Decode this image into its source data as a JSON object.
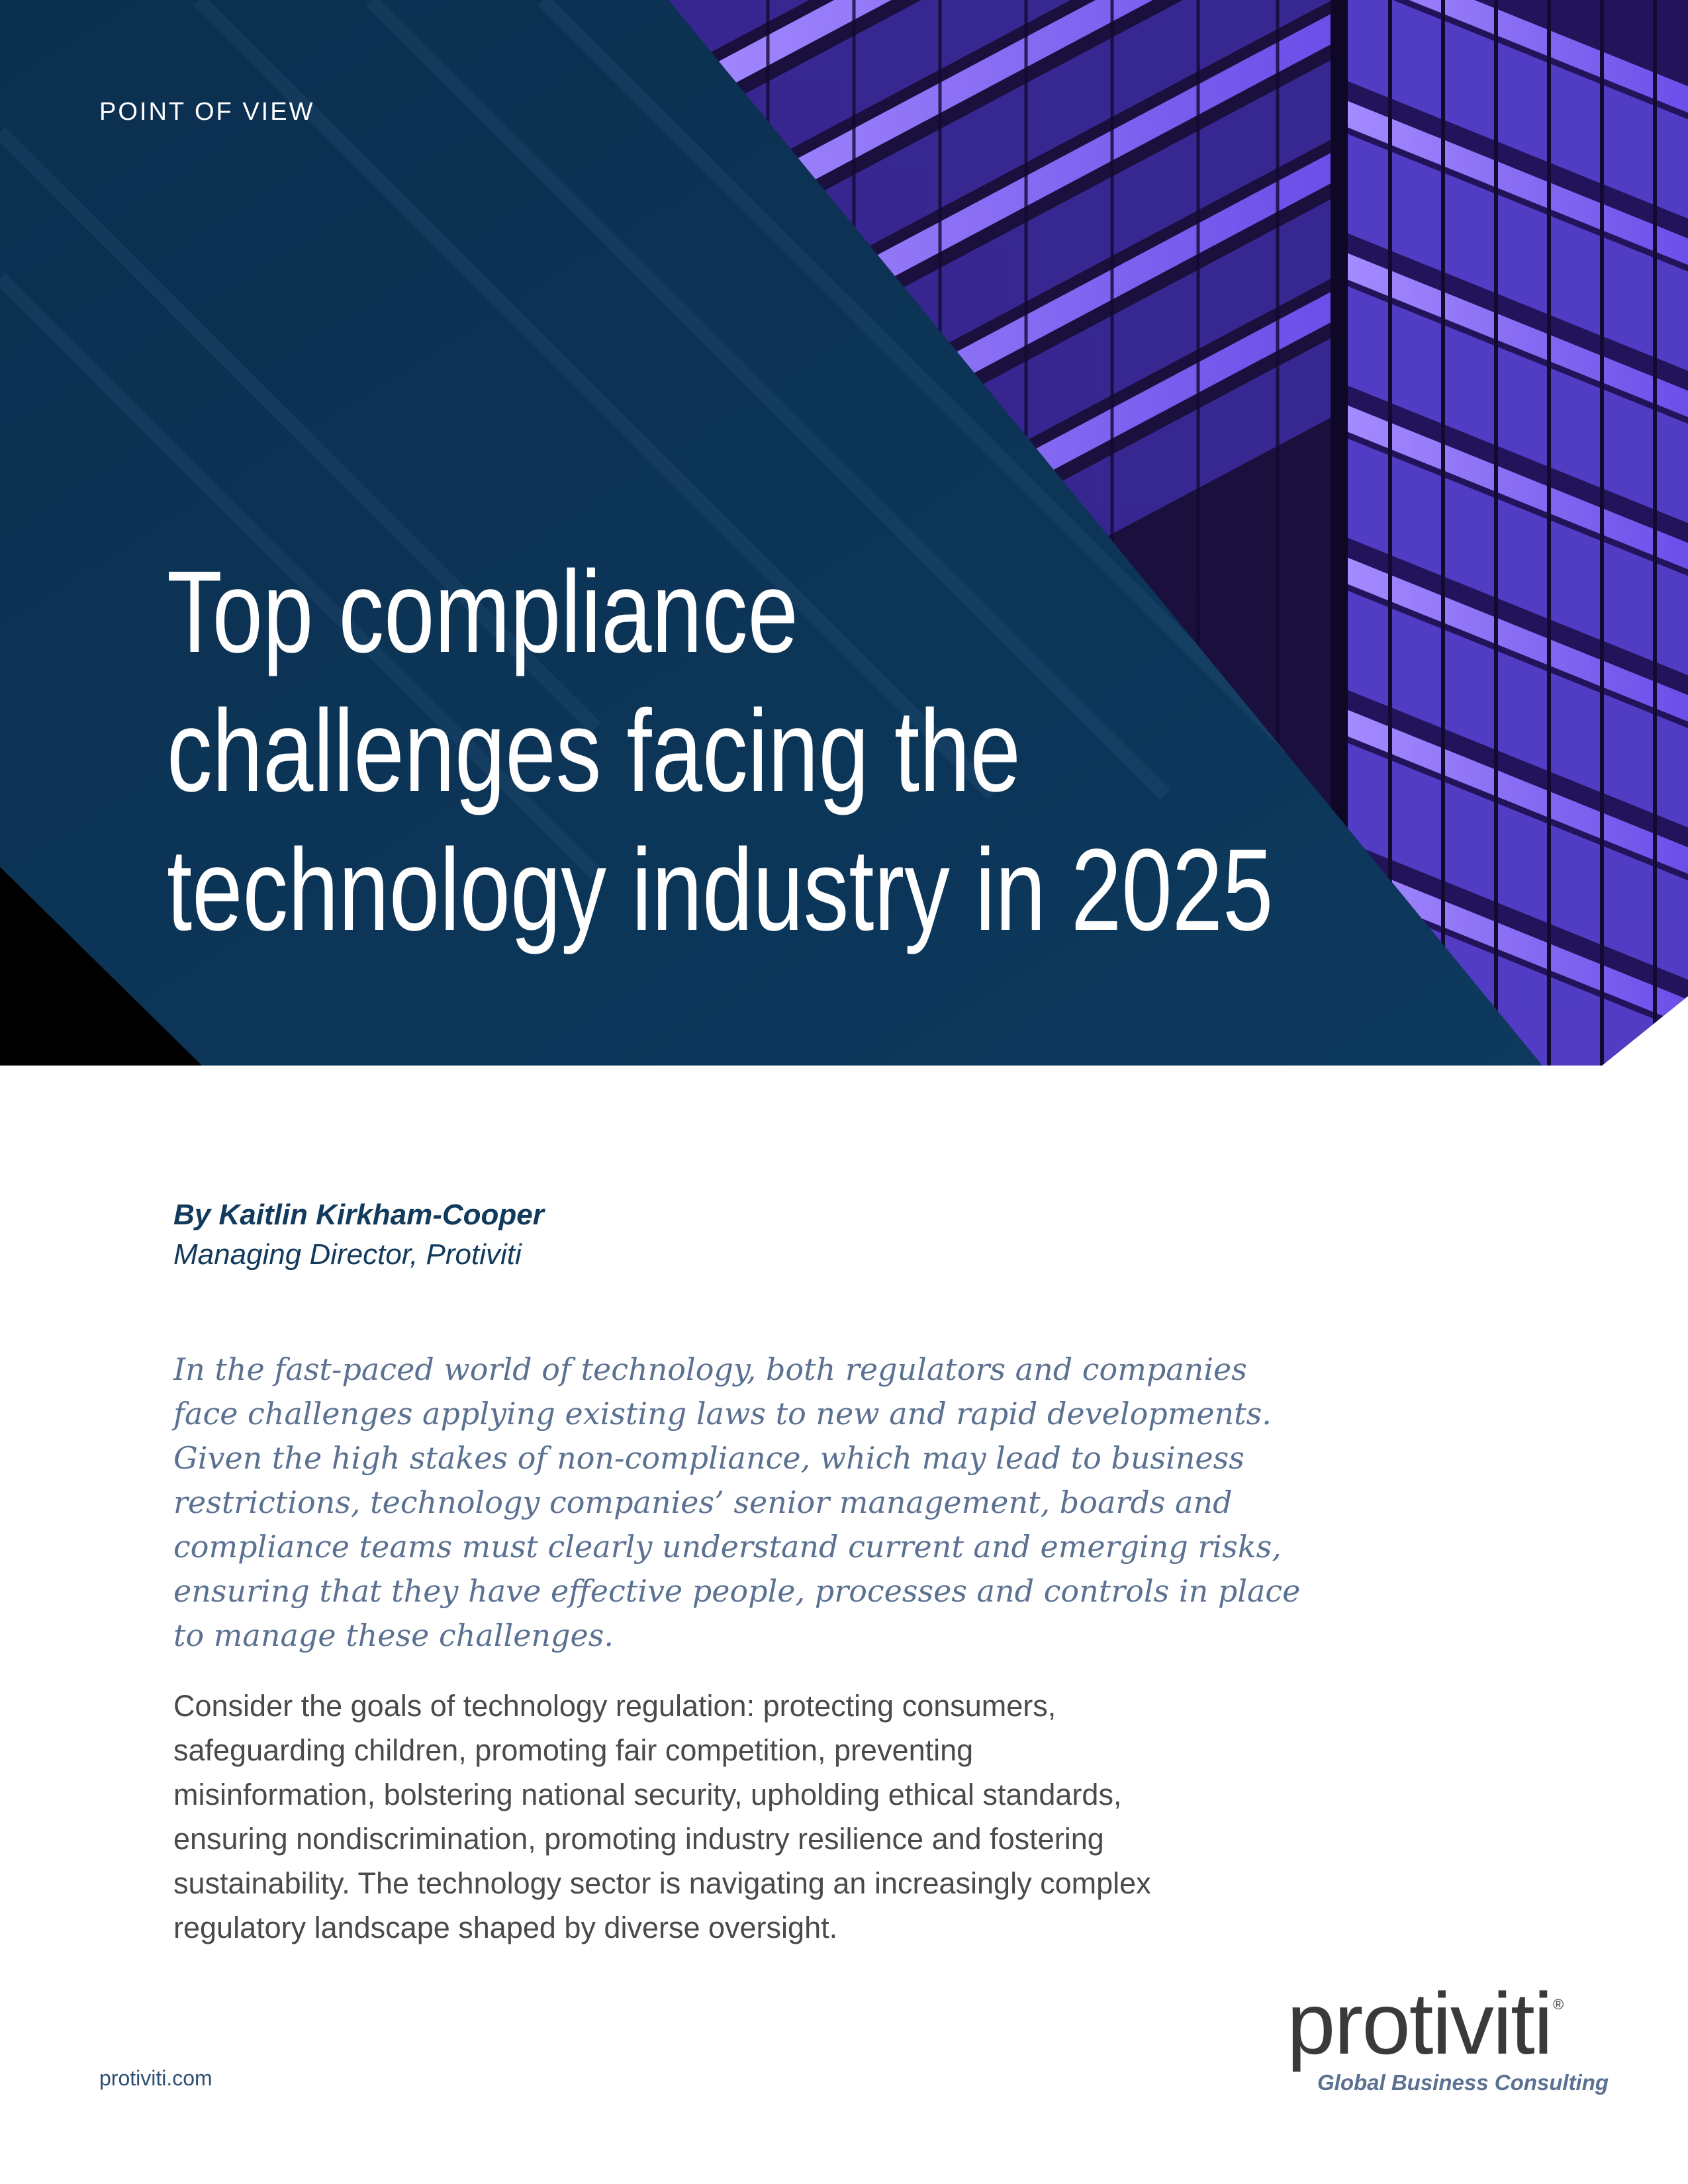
{
  "hero": {
    "eyebrow": "POINT OF VIEW",
    "title_lines": [
      "Top compliance",
      "challenges facing the",
      "technology industry in 2025"
    ],
    "background_color": "#0c3454",
    "image_accent_color": "#7b5cff"
  },
  "byline": {
    "author": "By Kaitlin Kirkham-Cooper",
    "role": "Managing Director, Protiviti"
  },
  "intro_lines": [
    "In the fast-paced world of technology, both regulators and companies",
    "face challenges applying existing laws to new and rapid developments.",
    "Given the high stakes of non-compliance, which may lead to business",
    "restrictions, technology companies’ senior management, boards and",
    "compliance teams must clearly understand current and emerging risks,",
    "ensuring that they have effective people, processes and controls in place",
    "to manage these challenges."
  ],
  "body_lines": [
    "Consider the goals of technology regulation: protecting consumers,",
    "safeguarding children, promoting fair competition, preventing",
    "misinformation, bolstering national security, upholding ethical standards,",
    "ensuring nondiscrimination, promoting industry resilience and fostering",
    "sustainability. The technology sector is navigating an increasingly complex",
    "regulatory landscape shaped by diverse oversight."
  ],
  "footer": {
    "url": "protiviti.com"
  },
  "logo": {
    "wordmark": "protiviti",
    "registered": "®",
    "tagline": "Global Business Consulting"
  }
}
